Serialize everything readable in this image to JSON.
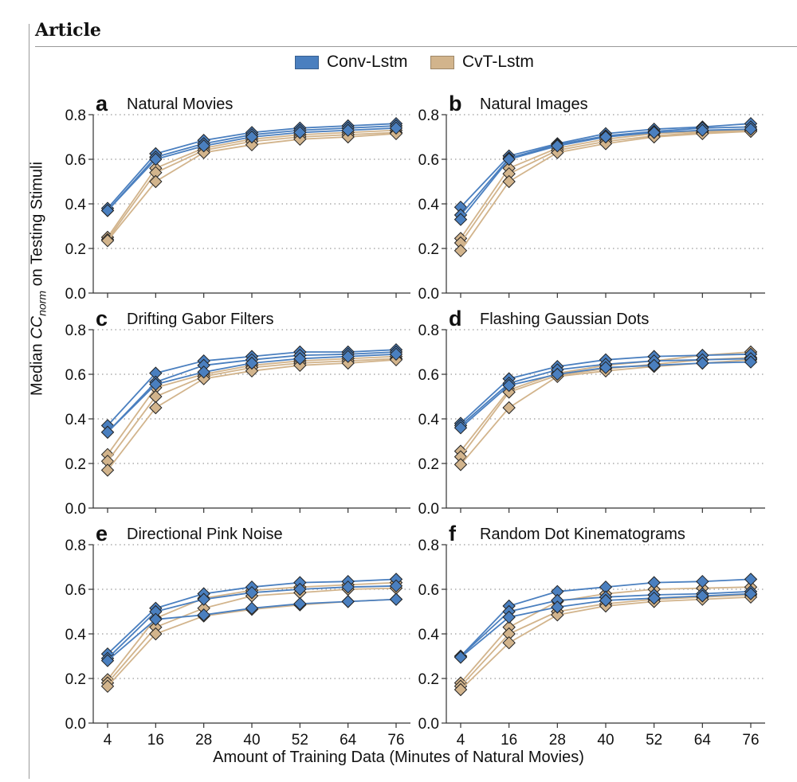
{
  "header": {
    "article_label": "Article"
  },
  "legend": [
    {
      "label": "Conv-Lstm",
      "color": "#4a7fbf"
    },
    {
      "label": "CvT-Lstm",
      "color": "#d2b48c"
    }
  ],
  "axis_labels": {
    "y_prefix": "Median ",
    "y_cc": "CC",
    "y_sub": "norm",
    "y_suffix": "  on Testing Stimuli",
    "x": "Amount of Training Data (Minutes of Natural Movies)"
  },
  "chart_data": [
    {
      "type": "line",
      "letter": "a",
      "title": "Natural Movies",
      "x": [
        4,
        16,
        28,
        40,
        52,
        64,
        76
      ],
      "ylim": [
        0,
        0.8
      ],
      "yticks": [
        0.0,
        0.2,
        0.4,
        0.6,
        0.8
      ],
      "grid": "horizontal dotted",
      "series": [
        {
          "group": "Conv-Lstm",
          "values": [
            0.38,
            0.625,
            0.685,
            0.72,
            0.74,
            0.75,
            0.76
          ]
        },
        {
          "group": "Conv-Lstm",
          "values": [
            0.37,
            0.61,
            0.67,
            0.71,
            0.73,
            0.74,
            0.75
          ]
        },
        {
          "group": "Conv-Lstm",
          "values": [
            0.37,
            0.6,
            0.66,
            0.7,
            0.72,
            0.73,
            0.74
          ]
        },
        {
          "group": "CvT-Lstm",
          "values": [
            0.25,
            0.56,
            0.65,
            0.69,
            0.71,
            0.72,
            0.73
          ]
        },
        {
          "group": "CvT-Lstm",
          "values": [
            0.24,
            0.54,
            0.64,
            0.68,
            0.7,
            0.71,
            0.72
          ]
        },
        {
          "group": "CvT-Lstm",
          "values": [
            0.235,
            0.5,
            0.63,
            0.665,
            0.69,
            0.7,
            0.715
          ]
        }
      ]
    },
    {
      "type": "line",
      "letter": "b",
      "title": "Natural Images",
      "x": [
        4,
        16,
        28,
        40,
        52,
        64,
        76
      ],
      "ylim": [
        0,
        0.8
      ],
      "yticks": [
        0.0,
        0.2,
        0.4,
        0.6,
        0.8
      ],
      "grid": "horizontal dotted",
      "series": [
        {
          "group": "Conv-Lstm",
          "values": [
            0.385,
            0.615,
            0.67,
            0.715,
            0.735,
            0.745,
            0.76
          ]
        },
        {
          "group": "Conv-Lstm",
          "values": [
            0.35,
            0.605,
            0.665,
            0.705,
            0.725,
            0.74,
            0.745
          ]
        },
        {
          "group": "Conv-Lstm",
          "values": [
            0.33,
            0.6,
            0.66,
            0.7,
            0.72,
            0.73,
            0.735
          ]
        },
        {
          "group": "CvT-Lstm",
          "values": [
            0.245,
            0.56,
            0.65,
            0.69,
            0.715,
            0.725,
            0.735
          ]
        },
        {
          "group": "CvT-Lstm",
          "values": [
            0.225,
            0.535,
            0.64,
            0.68,
            0.705,
            0.72,
            0.73
          ]
        },
        {
          "group": "CvT-Lstm",
          "values": [
            0.19,
            0.5,
            0.63,
            0.67,
            0.7,
            0.715,
            0.725
          ]
        }
      ]
    },
    {
      "type": "line",
      "letter": "c",
      "title": "Drifting Gabor Filters",
      "x": [
        4,
        16,
        28,
        40,
        52,
        64,
        76
      ],
      "ylim": [
        0,
        0.8
      ],
      "yticks": [
        0.0,
        0.2,
        0.4,
        0.6,
        0.8
      ],
      "grid": "horizontal dotted",
      "series": [
        {
          "group": "Conv-Lstm",
          "values": [
            0.37,
            0.605,
            0.66,
            0.68,
            0.7,
            0.7,
            0.71
          ]
        },
        {
          "group": "Conv-Lstm",
          "values": [
            0.34,
            0.565,
            0.64,
            0.665,
            0.685,
            0.69,
            0.7
          ]
        },
        {
          "group": "Conv-Lstm",
          "values": [
            0.34,
            0.555,
            0.61,
            0.65,
            0.67,
            0.68,
            0.69
          ]
        },
        {
          "group": "CvT-Lstm",
          "values": [
            0.24,
            0.54,
            0.6,
            0.64,
            0.66,
            0.67,
            0.68
          ]
        },
        {
          "group": "CvT-Lstm",
          "values": [
            0.21,
            0.5,
            0.59,
            0.63,
            0.65,
            0.66,
            0.67
          ]
        },
        {
          "group": "CvT-Lstm",
          "values": [
            0.17,
            0.45,
            0.58,
            0.615,
            0.64,
            0.65,
            0.665
          ]
        }
      ]
    },
    {
      "type": "line",
      "letter": "d",
      "title": "Flashing Gaussian Dots",
      "x": [
        4,
        16,
        28,
        40,
        52,
        64,
        76
      ],
      "ylim": [
        0,
        0.8
      ],
      "yticks": [
        0.0,
        0.2,
        0.4,
        0.6,
        0.8
      ],
      "grid": "horizontal dotted",
      "series": [
        {
          "group": "Conv-Lstm",
          "values": [
            0.38,
            0.58,
            0.635,
            0.665,
            0.68,
            0.685,
            0.69
          ]
        },
        {
          "group": "Conv-Lstm",
          "values": [
            0.37,
            0.56,
            0.62,
            0.645,
            0.66,
            0.665,
            0.67
          ]
        },
        {
          "group": "Conv-Lstm",
          "values": [
            0.36,
            0.55,
            0.6,
            0.63,
            0.64,
            0.65,
            0.655
          ]
        },
        {
          "group": "CvT-Lstm",
          "values": [
            0.255,
            0.53,
            0.605,
            0.64,
            0.66,
            0.685,
            0.7
          ]
        },
        {
          "group": "CvT-Lstm",
          "values": [
            0.23,
            0.52,
            0.595,
            0.625,
            0.645,
            0.665,
            0.675
          ]
        },
        {
          "group": "CvT-Lstm",
          "values": [
            0.195,
            0.45,
            0.59,
            0.615,
            0.635,
            0.65,
            0.665
          ]
        }
      ]
    },
    {
      "type": "line",
      "letter": "e",
      "title": "Directional Pink Noise",
      "x": [
        4,
        16,
        28,
        40,
        52,
        64,
        76
      ],
      "ylim": [
        0,
        0.8
      ],
      "yticks": [
        0.0,
        0.2,
        0.4,
        0.6,
        0.8
      ],
      "grid": "horizontal dotted",
      "series": [
        {
          "group": "Conv-Lstm",
          "values": [
            0.31,
            0.515,
            0.58,
            0.61,
            0.63,
            0.635,
            0.645
          ]
        },
        {
          "group": "Conv-Lstm",
          "values": [
            0.29,
            0.5,
            0.555,
            0.585,
            0.6,
            0.61,
            0.615
          ]
        },
        {
          "group": "Conv-Lstm",
          "values": [
            0.28,
            0.465,
            0.485,
            0.515,
            0.535,
            0.545,
            0.555
          ]
        },
        {
          "group": "CvT-Lstm",
          "values": [
            0.195,
            0.47,
            0.56,
            0.595,
            0.61,
            0.62,
            0.63
          ]
        },
        {
          "group": "CvT-Lstm",
          "values": [
            0.18,
            0.43,
            0.515,
            0.57,
            0.585,
            0.6,
            0.605
          ]
        },
        {
          "group": "CvT-Lstm",
          "values": [
            0.165,
            0.4,
            0.48,
            0.51,
            0.53,
            0.545,
            0.555
          ]
        }
      ]
    },
    {
      "type": "line",
      "letter": "f",
      "title": "Random Dot Kinematograms",
      "x": [
        4,
        16,
        28,
        40,
        52,
        64,
        76
      ],
      "ylim": [
        0,
        0.8
      ],
      "yticks": [
        0.0,
        0.2,
        0.4,
        0.6,
        0.8
      ],
      "grid": "horizontal dotted",
      "series": [
        {
          "group": "Conv-Lstm",
          "values": [
            0.3,
            0.525,
            0.59,
            0.61,
            0.63,
            0.635,
            0.645
          ]
        },
        {
          "group": "Conv-Lstm",
          "values": [
            0.3,
            0.5,
            0.55,
            0.565,
            0.575,
            0.58,
            0.59
          ]
        },
        {
          "group": "Conv-Lstm",
          "values": [
            0.295,
            0.475,
            0.52,
            0.55,
            0.56,
            0.57,
            0.58
          ]
        },
        {
          "group": "CvT-Lstm",
          "values": [
            0.18,
            0.43,
            0.545,
            0.58,
            0.6,
            0.605,
            0.61
          ]
        },
        {
          "group": "CvT-Lstm",
          "values": [
            0.165,
            0.4,
            0.5,
            0.535,
            0.555,
            0.565,
            0.575
          ]
        },
        {
          "group": "CvT-Lstm",
          "values": [
            0.15,
            0.36,
            0.485,
            0.525,
            0.545,
            0.555,
            0.565
          ]
        }
      ]
    }
  ]
}
